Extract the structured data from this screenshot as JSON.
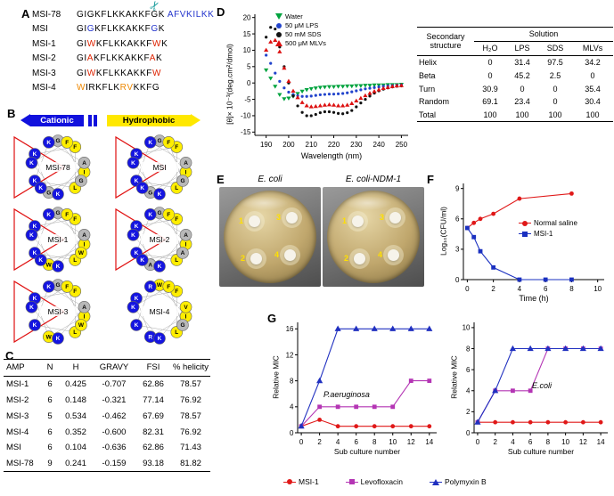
{
  "panel_labels": {
    "a": "A",
    "b": "B",
    "c": "C",
    "d": "D",
    "e": "E",
    "f": "F",
    "g": "G"
  },
  "panel_a": {
    "scissors_icon": "✂",
    "rows": [
      {
        "name": "MSI-78",
        "segments": [
          {
            "t": "GIGKFLKKAKKFGK ",
            "c": "#000000"
          },
          {
            "t": "AFVKILKK",
            "c": "#2233cc"
          }
        ]
      },
      {
        "name": "MSI",
        "segments": [
          {
            "t": "GI",
            "c": "#000000"
          },
          {
            "t": "G",
            "c": "#2233cc"
          },
          {
            "t": "KFLKKAKKF",
            "c": "#000000"
          },
          {
            "t": "G",
            "c": "#2233cc"
          },
          {
            "t": "K",
            "c": "#000000"
          }
        ]
      },
      {
        "name": "MSI-1",
        "segments": [
          {
            "t": "GI",
            "c": "#000000"
          },
          {
            "t": "W",
            "c": "#dd2200"
          },
          {
            "t": "KFLKKAKKF",
            "c": "#000000"
          },
          {
            "t": "W",
            "c": "#dd2200"
          },
          {
            "t": "K",
            "c": "#000000"
          }
        ]
      },
      {
        "name": "MSI-2",
        "segments": [
          {
            "t": "GI",
            "c": "#000000"
          },
          {
            "t": "A",
            "c": "#dd2200"
          },
          {
            "t": "KFLKKAKKF",
            "c": "#000000"
          },
          {
            "t": "A",
            "c": "#dd2200"
          },
          {
            "t": "K",
            "c": "#000000"
          }
        ]
      },
      {
        "name": "MSI-3",
        "segments": [
          {
            "t": "GI",
            "c": "#000000"
          },
          {
            "t": "W",
            "c": "#dd2200"
          },
          {
            "t": "KFLKKAKKF",
            "c": "#000000"
          },
          {
            "t": "W",
            "c": "#dd2200"
          }
        ]
      },
      {
        "name": "MSI-4",
        "segments": [
          {
            "t": "W",
            "c": "#ee8800"
          },
          {
            "t": "IRKFLK",
            "c": "#000000"
          },
          {
            "t": "RV",
            "c": "#ee8800"
          },
          {
            "t": "KKFG",
            "c": "#000000"
          }
        ]
      }
    ]
  },
  "panel_b": {
    "cationic_label": "Cationic",
    "hydrophobic_label": "Hydrophobic",
    "wheel_colors": {
      "cationic": "#1515e0",
      "cationic_set": "KR",
      "neutral": "#b8b8b8",
      "neutral_set": "GAS",
      "hydrophobic": "#ffee00",
      "triangle": "#e01010"
    },
    "wheels": [
      {
        "label": "MSI-78",
        "seq": "GIGKFLKKAKKFGK",
        "triangle": true
      },
      {
        "label": "MSI",
        "seq": "GIGKFLKKAKKFGK",
        "triangle": true
      },
      {
        "label": "MSI-1",
        "seq": "GIWKFLKKAKKFWK",
        "triangle": true
      },
      {
        "label": "MSI-2",
        "seq": "GIAKFLKKAKKFAK",
        "triangle": true
      },
      {
        "label": "MSI-3",
        "seq": "GIWKFLKKAKKFW",
        "triangle": true
      },
      {
        "label": "MSI-4",
        "seq": "WIRKFLKRVKKFG",
        "triangle": false
      }
    ]
  },
  "panel_c": {
    "headers": [
      "AMP",
      "N",
      "H",
      "GRAVY",
      "FSI",
      "% helicity"
    ],
    "rows": [
      [
        "MSI-1",
        "6",
        "0.425",
        "-0.707",
        "62.86",
        "78.57"
      ],
      [
        "MSI-2",
        "6",
        "0.148",
        "-0.321",
        "77.14",
        "76.92"
      ],
      [
        "MSI-3",
        "5",
        "0.534",
        "-0.462",
        "67.69",
        "78.57"
      ],
      [
        "MSI-4",
        "6",
        "0.352",
        "-0.600",
        "82.31",
        "76.92"
      ],
      [
        "MSI",
        "6",
        "0.104",
        "-0.636",
        "62.86",
        "71.43"
      ],
      [
        "MSI-78",
        "9",
        "0.241",
        "-0.159",
        "93.18",
        "81.82"
      ]
    ]
  },
  "panel_d": {
    "table": {
      "row_header": "Secondary structure",
      "group_header": "Solution",
      "col_headers": [
        "H₂O",
        "LPS",
        "SDS",
        "MLVs"
      ],
      "rows": [
        [
          "Helix",
          "0",
          "31.4",
          "97.5",
          "34.2"
        ],
        [
          "Beta",
          "0",
          "45.2",
          "2.5",
          "0"
        ],
        [
          "Turn",
          "30.9",
          "0",
          "0",
          "35.4"
        ],
        [
          "Random",
          "69.1",
          "23.4",
          "0",
          "30.4"
        ],
        [
          "Total",
          "100",
          "100",
          "100",
          "100"
        ]
      ]
    }
  },
  "panel_e": {
    "plates": [
      {
        "label": "E. coli",
        "disks": [
          "1",
          "2",
          "3",
          "4"
        ]
      },
      {
        "label": "E. coli-NDM-1",
        "disks": [
          "1",
          "2",
          "3",
          "4"
        ]
      }
    ]
  },
  "chart_data": [
    {
      "id": "cd-spectra",
      "type": "scatter",
      "xlabel": "Wavelength (nm)",
      "ylabel": "[θ]× 10⁻³(deg.cm²/dmol)",
      "xlim": [
        185,
        253
      ],
      "ylim": [
        -16,
        21
      ],
      "xticks": [
        190,
        200,
        210,
        220,
        230,
        240,
        250
      ],
      "yticks": [
        -15,
        -10,
        -5,
        0,
        5,
        10,
        15,
        20
      ],
      "x": [
        190,
        192,
        194,
        196,
        198,
        200,
        202,
        204,
        206,
        208,
        210,
        212,
        214,
        216,
        218,
        220,
        222,
        224,
        226,
        228,
        230,
        232,
        234,
        236,
        238,
        240,
        242,
        244,
        246,
        248,
        250
      ],
      "series": [
        {
          "name": "Water",
          "color": "#00a33e",
          "marker": "triangle-down",
          "line": false,
          "size": 1.6,
          "y": [
            4,
            1.5,
            -1,
            -3.5,
            -4.8,
            -4.6,
            -4,
            -3.2,
            -2.5,
            -2,
            -1.7,
            -1.5,
            -1.3,
            -1.2,
            -1.1,
            -1.1,
            -1,
            -1,
            -0.9,
            -0.9,
            -0.8,
            -0.8,
            -0.7,
            -0.7,
            -0.6,
            -0.6,
            -0.6,
            -0.5,
            -0.5,
            -0.5,
            -0.4
          ]
        },
        {
          "name": "50 μM LPS",
          "color": "#2244cc",
          "marker": "circle",
          "line": false,
          "size": 1.6,
          "y": [
            8.5,
            6,
            3,
            0.5,
            -1.5,
            -2.8,
            -3.5,
            -3.9,
            -4.1,
            -4.1,
            -4,
            -3.8,
            -3.6,
            -3.5,
            -3.4,
            -3.4,
            -3.3,
            -3.2,
            -3,
            -2.7,
            -2.4,
            -2.1,
            -1.8,
            -1.6,
            -1.4,
            -1.2,
            -1,
            -0.9,
            -0.8,
            -0.7,
            -0.6
          ]
        },
        {
          "name": "50 mM SDS",
          "color": "#111111",
          "marker": "circle",
          "line": false,
          "size": 1.6,
          "y": [
            14,
            17,
            16.5,
            11,
            5,
            0,
            -4,
            -7,
            -9,
            -10,
            -10,
            -9.6,
            -9.1,
            -8.8,
            -8.8,
            -9,
            -9.3,
            -9.4,
            -9.1,
            -8.4,
            -7.3,
            -6.1,
            -5,
            -4,
            -3.1,
            -2.4,
            -1.9,
            -1.5,
            -1.2,
            -1,
            -0.9
          ]
        },
        {
          "name": "500 μM MLVs",
          "color": "#dd1111",
          "marker": "triangle-up",
          "line": false,
          "size": 1.6,
          "y": [
            10,
            12.5,
            13,
            9.5,
            4.5,
            0.5,
            -2.5,
            -4.5,
            -6,
            -7,
            -7.3,
            -7.2,
            -7,
            -6.8,
            -6.7,
            -6.8,
            -7,
            -7,
            -6.8,
            -6.3,
            -5.5,
            -4.7,
            -3.9,
            -3.2,
            -2.6,
            -2.1,
            -1.7,
            -1.4,
            -1.1,
            -0.9,
            -0.8
          ]
        }
      ]
    },
    {
      "id": "killing-kinetics",
      "type": "line",
      "xlabel": "Time (h)",
      "ylabel": "Log₁₀(CFU/ml)",
      "xlim": [
        -0.3,
        10.5
      ],
      "ylim": [
        0,
        9.5
      ],
      "xticks": [
        0,
        2,
        4,
        6,
        8,
        10
      ],
      "yticks": [
        0,
        3,
        6,
        9
      ],
      "series": [
        {
          "name": "Normal saline",
          "color": "#e01818",
          "marker": "circle",
          "size": 2.4,
          "x": [
            0,
            0.5,
            1,
            2,
            4,
            8
          ],
          "y": [
            5.1,
            5.6,
            6,
            6.5,
            8,
            8.5
          ]
        },
        {
          "name": "MSI-1",
          "color": "#1a30c0",
          "marker": "square",
          "size": 2.4,
          "x": [
            0,
            0.5,
            1,
            2,
            4,
            6,
            8
          ],
          "y": [
            5.1,
            4.2,
            2.8,
            1.2,
            0,
            0,
            0
          ]
        }
      ]
    },
    {
      "id": "mic-paeruginosa",
      "type": "line",
      "xlabel": "Sub culture number",
      "ylabel": "Relative MIC",
      "annotation": "P.aeruginosa",
      "xlim": [
        -0.4,
        14.8
      ],
      "ylim": [
        0,
        17
      ],
      "xticks": [
        0,
        2,
        4,
        6,
        8,
        10,
        12,
        14
      ],
      "yticks": [
        0,
        4,
        8,
        12,
        16
      ],
      "x": [
        0,
        2,
        4,
        6,
        8,
        10,
        12,
        14
      ],
      "series": [
        {
          "name": "MSI-1",
          "color": "#e01818",
          "marker": "circle",
          "size": 2.4,
          "y": [
            1,
            2,
            1,
            1,
            1,
            1,
            1,
            1
          ]
        },
        {
          "name": "Levofloxacin",
          "color": "#b435b4",
          "marker": "square",
          "size": 2.4,
          "y": [
            1,
            4,
            4,
            4,
            4,
            4,
            8,
            8
          ]
        },
        {
          "name": "Polymyxin B",
          "color": "#2030c0",
          "marker": "triangle-up",
          "size": 2.6,
          "y": [
            1,
            8,
            16,
            16,
            16,
            16,
            16,
            16
          ]
        }
      ]
    },
    {
      "id": "mic-ecoli",
      "type": "line",
      "xlabel": "Sub culture number",
      "ylabel": "Relative MIC",
      "annotation": "E.coli",
      "xlim": [
        -0.4,
        14.8
      ],
      "ylim": [
        0,
        10.5
      ],
      "xticks": [
        0,
        2,
        4,
        6,
        8,
        10,
        12,
        14
      ],
      "yticks": [
        0,
        2,
        4,
        6,
        8,
        10
      ],
      "x": [
        0,
        2,
        4,
        6,
        8,
        10,
        12,
        14
      ],
      "series": [
        {
          "name": "MSI-1",
          "color": "#e01818",
          "marker": "circle",
          "size": 2.4,
          "y": [
            1,
            1,
            1,
            1,
            1,
            1,
            1,
            1
          ]
        },
        {
          "name": "Levofloxacin",
          "color": "#b435b4",
          "marker": "square",
          "size": 2.4,
          "y": [
            1,
            4,
            4,
            4,
            8,
            8,
            8,
            8
          ]
        },
        {
          "name": "Polymyxin B",
          "color": "#2030c0",
          "marker": "triangle-up",
          "size": 2.6,
          "y": [
            1,
            4,
            8,
            8,
            8,
            8,
            8,
            8
          ]
        }
      ]
    }
  ]
}
